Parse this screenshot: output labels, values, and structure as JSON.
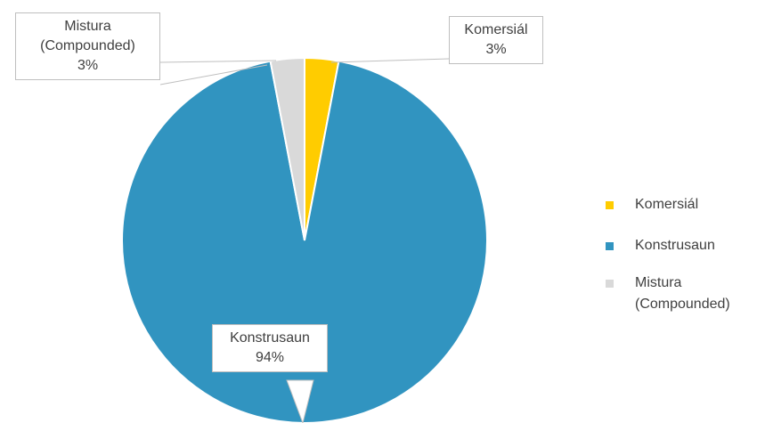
{
  "chart_data": {
    "type": "pie",
    "categories": [
      "Komersiál",
      "Konstrusaun",
      "Mistura (Compounded)"
    ],
    "values": [
      3,
      94,
      3
    ],
    "value_labels": [
      "3%",
      "94%",
      "3%"
    ],
    "colors": [
      "#ffcc00",
      "#3194c0",
      "#d9d9d9"
    ],
    "legend": "right"
  }
}
